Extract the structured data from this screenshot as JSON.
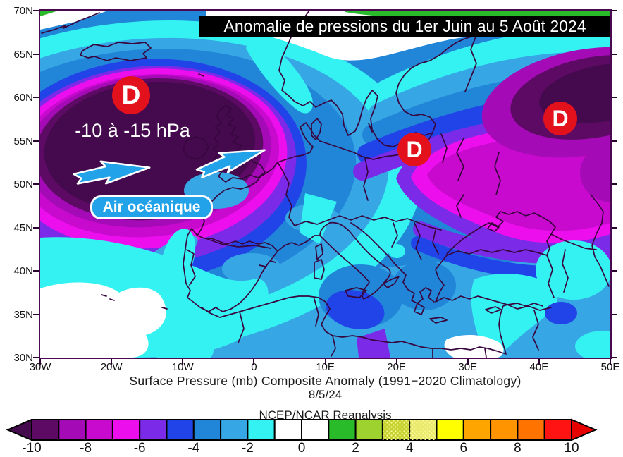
{
  "title_banner": {
    "text": "Anomalie de pressions du 1er Juin au 5 Août 2024"
  },
  "map": {
    "lat_labels": [
      "70N",
      "65N",
      "60N",
      "55N",
      "50N",
      "45N",
      "40N",
      "35N",
      "30N"
    ],
    "lon_labels": [
      "30W",
      "20W",
      "10W",
      "0",
      "10E",
      "20E",
      "30E",
      "40E",
      "50E"
    ],
    "low_marker": "D",
    "pressure_label": "-10 à -15 hPa",
    "air_mass_label": "Air océanique",
    "palette": {
      "below": "#45094E",
      "m10": "#5C0A64",
      "m9": "#A40AB5",
      "m8": "#C80ACE",
      "m7": "#ED0EED",
      "m6": "#7B2BE8",
      "m5": "#2144E8",
      "m4": "#2186D8",
      "m3": "#36A6E4",
      "m2": "#35F2F2",
      "zero": "#FFFFFF",
      "p2": "#2ABB2A",
      "p3": "#9ED32F",
      "p4": "#C4D32F",
      "p5": "#E9E96E",
      "p6": "#FFFF00",
      "p7": "#FFA500",
      "p8": "#FF9400",
      "p9": "#FF7300",
      "p10": "#FF1313",
      "above": "#E60000",
      "coast": "#38063E",
      "frame": "#4A0850",
      "marker_red": "#E3111C",
      "annotation_blue": "#22A2E8",
      "tick_color": "#2A0530"
    }
  },
  "caption": {
    "line1": "Surface Pressure (mb) Composite Anomaly (1991−2020 Climatology)",
    "date": "8/5/24",
    "source": "NCEP/NCAR Reanalysis"
  },
  "colorbar": {
    "tick_labels": [
      "-10",
      "-8",
      "-6",
      "-4",
      "-2",
      "0",
      "2",
      "4",
      "6",
      "8",
      "10"
    ],
    "cells": [
      "m10",
      "m9",
      "m8",
      "m7",
      "m6",
      "m5",
      "m4",
      "m3",
      "m2",
      "zero",
      "zero",
      "p2",
      "p3",
      "p4",
      "p5",
      "p6",
      "p7",
      "p8",
      "p9",
      "p10"
    ],
    "left_arrow": "below",
    "right_arrow": "above",
    "stippled_cells": [
      13,
      14
    ]
  },
  "chart_data": {
    "type": "heatmap",
    "title": "Anomalie de pressions du 1er Juin au 5 Août 2024",
    "variable": "Surface Pressure (mb) Composite Anomaly (1991−2020 Climatology)",
    "date": "8/5/24",
    "source": "NCEP/NCAR Reanalysis",
    "units": "mb",
    "lon_range": [
      "30W",
      "50E"
    ],
    "lat_range": [
      "30N",
      "70N"
    ],
    "scale_min": -10,
    "scale_max": 10,
    "scale_step": 1,
    "annotations": [
      {
        "label": "D",
        "note": "-10 à -15 hPa",
        "area": "large negative anomaly over North Atlantic / British Isles"
      },
      {
        "label": "D",
        "area": "negative anomaly over central-eastern Europe"
      },
      {
        "label": "D",
        "area": "negative anomaly over western Russia"
      },
      {
        "label": "Air océanique",
        "area": "oceanic air advected toward Europe (arrows)"
      }
    ]
  }
}
